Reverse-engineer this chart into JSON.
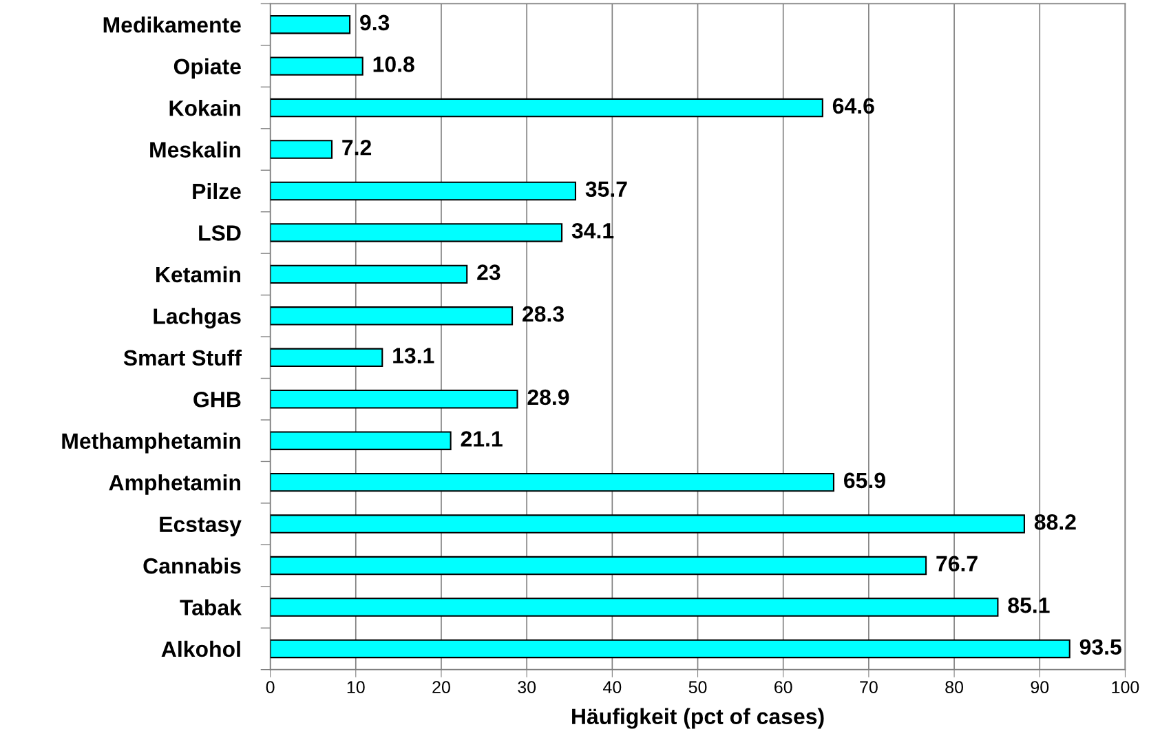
{
  "chart_data": {
    "type": "bar",
    "orientation": "horizontal",
    "xlabel": "Häufigkeit (pct of cases)",
    "categories": [
      "Medikamente",
      "Opiate",
      "Kokain",
      "Meskalin",
      "Pilze",
      "LSD",
      "Ketamin",
      "Lachgas",
      "Smart Stuff",
      "GHB",
      "Methamphetamin",
      "Amphetamin",
      "Ecstasy",
      "Cannabis",
      "Tabak",
      "Alkohol"
    ],
    "values": [
      9.3,
      10.8,
      64.6,
      7.2,
      35.7,
      34.1,
      23,
      28.3,
      13.1,
      28.9,
      21.1,
      65.9,
      88.2,
      76.7,
      85.1,
      93.5
    ],
    "color": "#00ffff",
    "xlim": [
      0,
      100
    ],
    "xticks": [
      0,
      10,
      20,
      30,
      40,
      50,
      60,
      70,
      80,
      90,
      100
    ],
    "grid": "x",
    "data_labels": true
  }
}
